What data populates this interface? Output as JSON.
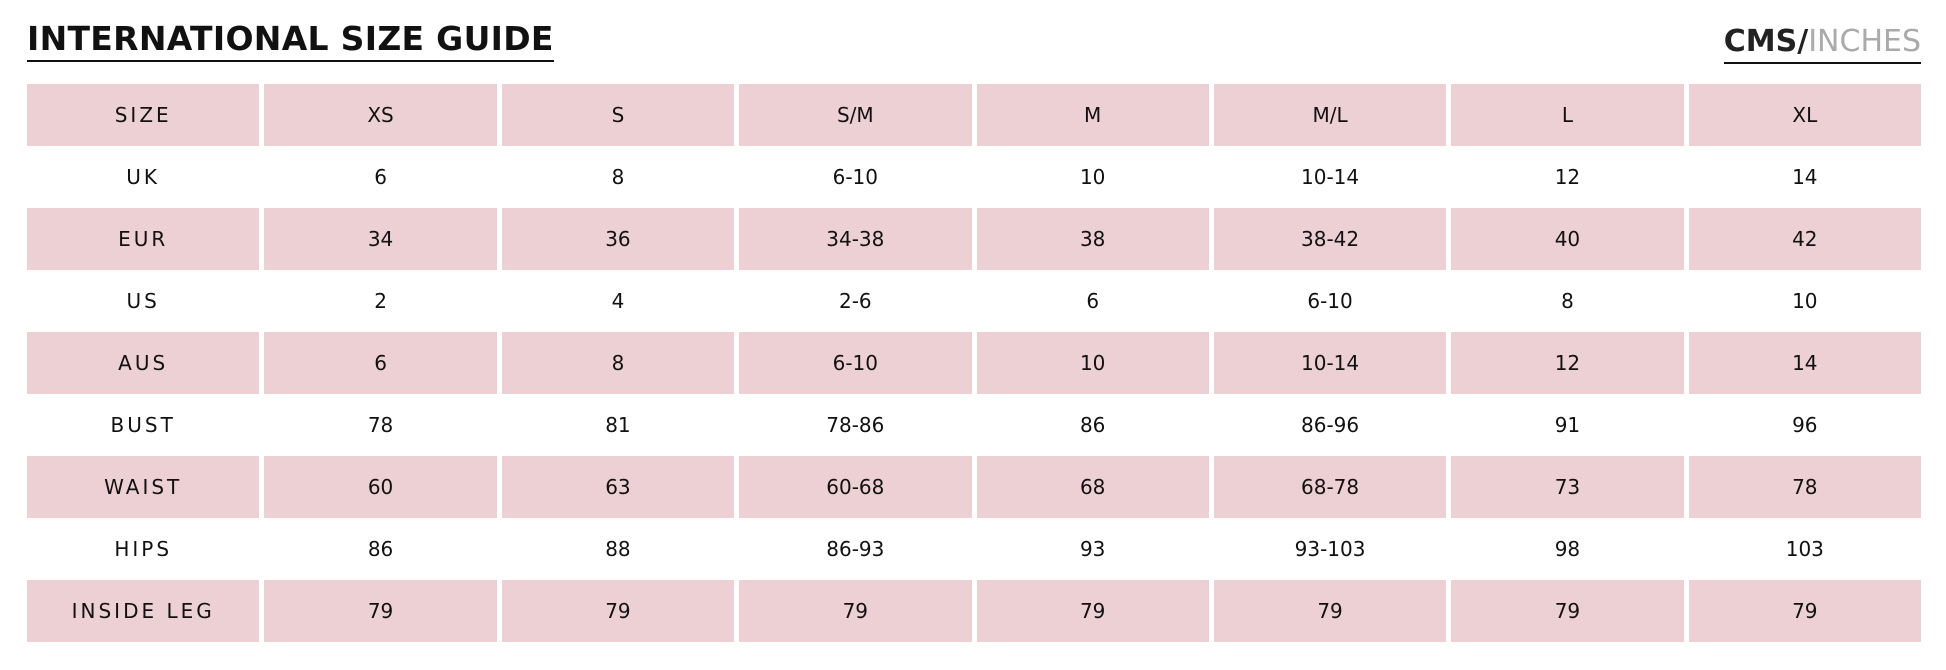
{
  "header": {
    "title": "INTERNATIONAL SIZE GUIDE",
    "unit_active": "CMS/",
    "unit_inactive": "INCHES"
  },
  "table": {
    "header": [
      "SIZE",
      "XS",
      "S",
      "S/M",
      "M",
      "M/L",
      "L",
      "XL"
    ],
    "rows": [
      [
        "UK",
        "6",
        "8",
        "6-10",
        "10",
        "10-14",
        "12",
        "14"
      ],
      [
        "EUR",
        "34",
        "36",
        "34-38",
        "38",
        "38-42",
        "40",
        "42"
      ],
      [
        "US",
        "2",
        "4",
        "2-6",
        "6",
        "6-10",
        "8",
        "10"
      ],
      [
        "AUS",
        "6",
        "8",
        "6-10",
        "10",
        "10-14",
        "12",
        "14"
      ],
      [
        "BUST",
        "78",
        "81",
        "78-86",
        "86",
        "86-96",
        "91",
        "96"
      ],
      [
        "WAIST",
        "60",
        "63",
        "60-68",
        "68",
        "68-78",
        "73",
        "78"
      ],
      [
        "HIPS",
        "86",
        "88",
        "86-93",
        "93",
        "93-103",
        "98",
        "103"
      ],
      [
        "INSIDE LEG",
        "79",
        "79",
        "79",
        "79",
        "79",
        "79",
        "79"
      ]
    ]
  }
}
